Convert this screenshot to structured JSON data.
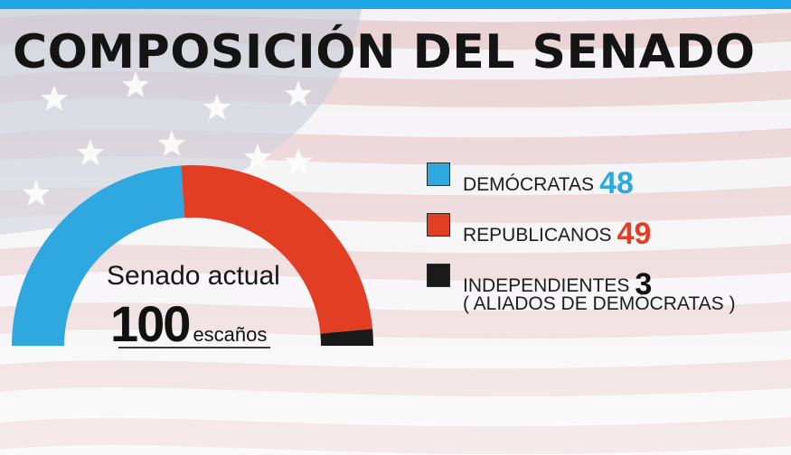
{
  "title": "COMPOSICIÓN DEL SENADO",
  "center": {
    "label": "Senado actual",
    "total": "100",
    "unit": "escaños"
  },
  "colors": {
    "topbar": "#1ea6e6",
    "democratas": "#2fa8df",
    "republicanos": "#e23e24",
    "independientes": "#1a1a1a",
    "flag_stripe": "#e6c6c8",
    "flag_canton": "#c7ccd6"
  },
  "chart_data": {
    "type": "pie",
    "title": "COMPOSICIÓN DEL SENADO",
    "total": 100,
    "categories": [
      "DEMÓCRATAS",
      "REPUBLICANOS",
      "INDEPENDIENTES"
    ],
    "values": [
      48,
      49,
      3
    ],
    "note": "( ALIADOS DE DEMÓCRATAS )"
  },
  "legend": [
    {
      "label": "DEMÓCRATAS",
      "value": "48",
      "color": "#2fa8df"
    },
    {
      "label": "REPUBLICANOS",
      "value": "49",
      "color": "#e23e24"
    },
    {
      "label": "INDEPENDIENTES",
      "value": "3",
      "color": "#1a1a1a"
    }
  ],
  "note": "( ALIADOS DE DEMÓCRATAS )"
}
